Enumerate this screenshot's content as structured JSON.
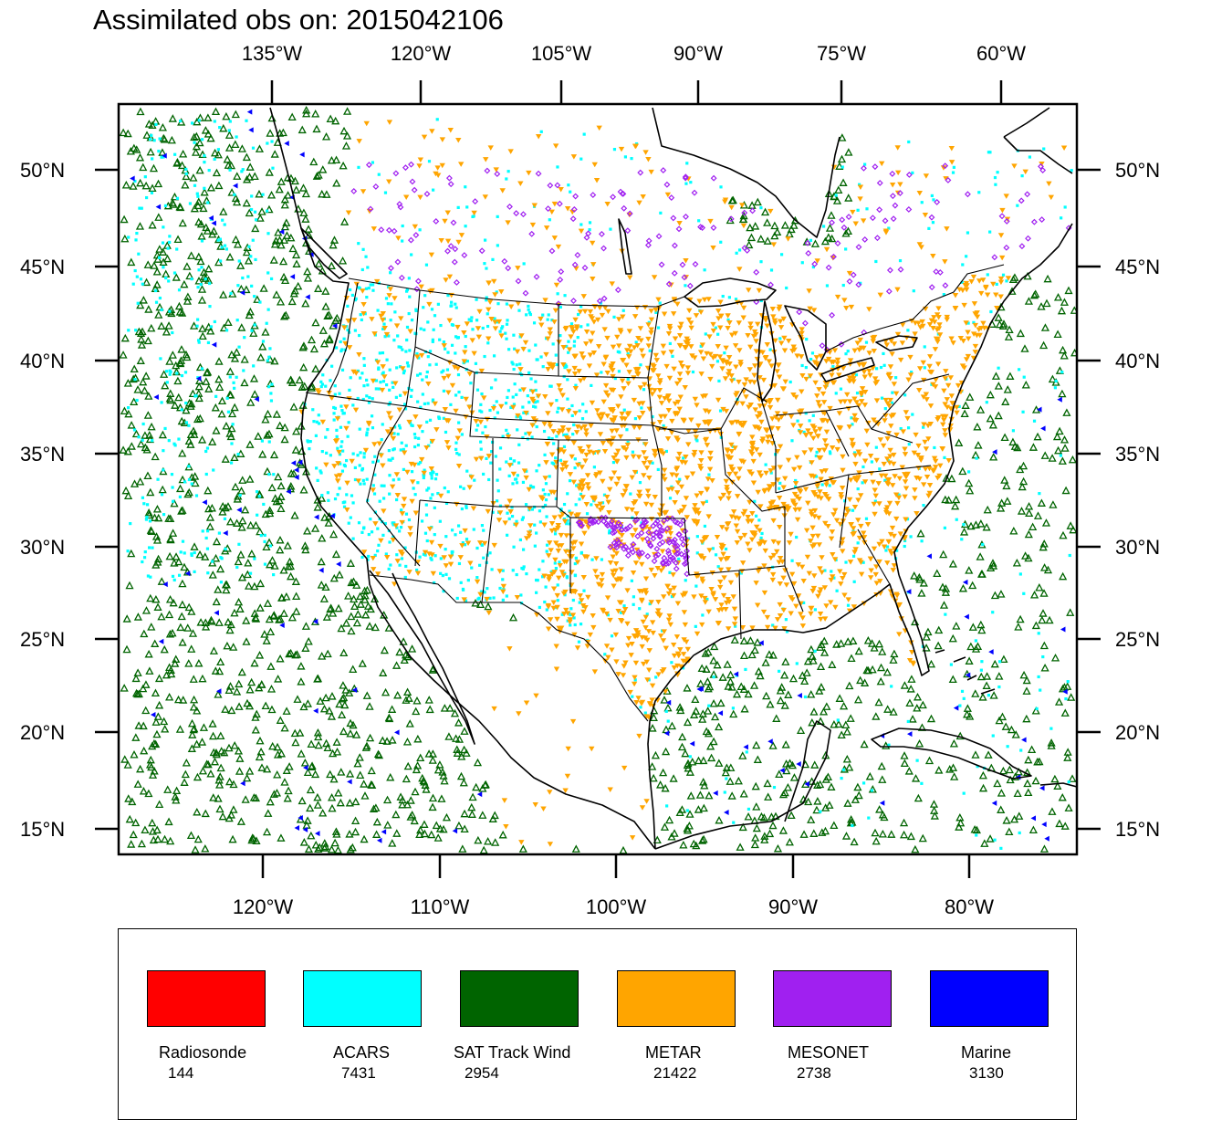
{
  "chart_data": {
    "type": "scatter",
    "title": "Assimilated obs on: 2015042106",
    "top_lon_ticks": [
      "135°W",
      "120°W",
      "105°W",
      "90°W",
      "75°W",
      "60°W"
    ],
    "bottom_lon_ticks": [
      "120°W",
      "110°W",
      "100°W",
      "90°W",
      "80°W"
    ],
    "lat_ticks": [
      "50°N",
      "45°N",
      "40°N",
      "35°N",
      "30°N",
      "25°N",
      "20°N",
      "15°N"
    ],
    "lon_range": [
      -128,
      -74
    ],
    "lat_range": [
      14,
      53
    ],
    "series": [
      {
        "name": "Radiosonde",
        "count": "144",
        "color": "#ff0000",
        "marker": "circle"
      },
      {
        "name": "ACARS",
        "count": "7431",
        "color": "#00ffff",
        "marker": "square"
      },
      {
        "name": "SAT Track Wind",
        "count": "2954",
        "color": "#006400",
        "marker": "triangle-up"
      },
      {
        "name": "METAR",
        "count": "21422",
        "color": "#ffa500",
        "marker": "triangle-down"
      },
      {
        "name": "MESONET",
        "count": "2738",
        "color": "#a020f0",
        "marker": "diamond"
      },
      {
        "name": "Marine",
        "count": "3130",
        "color": "#0000ff",
        "marker": "triangle-left"
      }
    ]
  }
}
